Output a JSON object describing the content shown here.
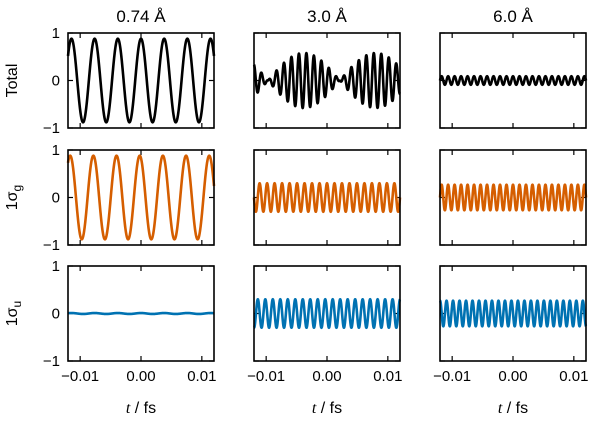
{
  "chart_data": {
    "type": "line",
    "layout": "3x3 small multiples",
    "columns": [
      "0.74 Å",
      "3.0 Å",
      "6.0 Å"
    ],
    "rows": [
      {
        "label": "Total",
        "sub": "",
        "color": "#000000"
      },
      {
        "label": "1σ",
        "sub": "g",
        "color": "#d55e00"
      },
      {
        "label": "1σ",
        "sub": "u",
        "color": "#0072b2"
      }
    ],
    "xlabel_var": "t",
    "xlabel_unit": " / fs",
    "xlim": [
      -0.012,
      0.012
    ],
    "ylim": [
      -1,
      1
    ],
    "xticks": [
      -0.01,
      0.0,
      0.01
    ],
    "xtick_labels": [
      "−0.01",
      "0.00",
      "0.01"
    ],
    "yticks": [
      -1,
      0,
      1
    ],
    "ytick_labels": [
      "−1",
      "0",
      "1"
    ],
    "panels": [
      [
        {
          "amplitude": 0.88,
          "cycles": 6.3,
          "phase": 0.0,
          "beat": false
        },
        {
          "amplitude": 0.88,
          "cycles": 6.3,
          "phase": 0.35,
          "beat": false
        },
        {
          "amplitude": 0.01,
          "cycles": 6.3,
          "phase": 0.0,
          "beat": false
        }
      ],
      [
        {
          "amplitude": 0.58,
          "cycles": 19.5,
          "beat": true,
          "beat_period": 0.0118,
          "beat_center": -0.0038
        },
        {
          "amplitude": 0.3,
          "cycles": 19.5,
          "phase": 0.0,
          "beat": false
        },
        {
          "amplitude": 0.3,
          "cycles": 19.5,
          "phase": 1.5,
          "beat": false
        }
      ],
      [
        {
          "amplitude": 0.09,
          "cycles": 22.5,
          "phase": 0.0,
          "beat": false
        },
        {
          "amplitude": 0.27,
          "cycles": 22.5,
          "phase": 0.0,
          "beat": false
        },
        {
          "amplitude": 0.27,
          "cycles": 22.5,
          "phase": 1.5,
          "beat": false
        }
      ]
    ]
  }
}
